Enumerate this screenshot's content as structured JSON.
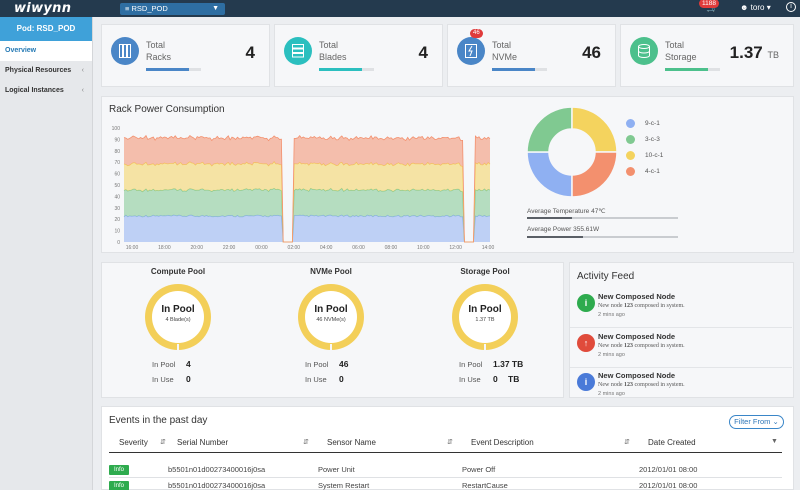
{
  "topbar": {
    "logo": "wiwynn",
    "pod_select": "RSD_POD",
    "cart_count": "1188",
    "user": "toro"
  },
  "sidebar": {
    "header": "Pod: RSD_POD",
    "items": [
      {
        "label": "Overview"
      },
      {
        "label": "Physical Resources"
      },
      {
        "label": "Logical Instances"
      }
    ]
  },
  "stats": [
    {
      "label1": "Total",
      "label2": "Racks",
      "value": "4",
      "unit": "",
      "color": "#4a86c7",
      "bar": 0.78
    },
    {
      "label1": "Total",
      "label2": "Blades",
      "value": "4",
      "unit": "",
      "color": "#2bbfbf",
      "bar": 0.78
    },
    {
      "label1": "Total",
      "label2": "NVMe",
      "value": "46",
      "unit": "",
      "color": "#4a86c7",
      "bar": 0.78,
      "badge": "46"
    },
    {
      "label1": "Total",
      "label2": "Storage",
      "value": "1.37",
      "unit": "TB",
      "color": "#4cc08c",
      "bar": 0.78
    }
  ],
  "rack_power": {
    "title": "Rack Power Consumption",
    "x_ticks": [
      "16:00",
      "18:00",
      "20:00",
      "22:00",
      "00:00",
      "02:00",
      "04:00",
      "06:00",
      "08:00",
      "10:00",
      "12:00",
      "14:00"
    ],
    "y_ticks": [
      "0",
      "10",
      "20",
      "30",
      "40",
      "50",
      "60",
      "70",
      "80",
      "90",
      "100"
    ],
    "legend": [
      {
        "name": "9-c-1",
        "color": "#8fb0f2"
      },
      {
        "name": "3-c-3",
        "color": "#80c991"
      },
      {
        "name": "10-c-1",
        "color": "#f4d35e"
      },
      {
        "name": "4-c-1",
        "color": "#f3906e"
      }
    ],
    "avg_temp_label": "Average Temperature 47℃",
    "avg_temp_fill": 0.3,
    "avg_power_label": "Average Power 355.61W",
    "avg_power_fill": 0.37
  },
  "chart_data": [
    {
      "type": "area",
      "title": "Rack Power Consumption",
      "x": [
        "16:00",
        "18:00",
        "20:00",
        "22:00",
        "00:00",
        "02:00",
        "04:00",
        "06:00",
        "08:00",
        "10:00",
        "12:00",
        "14:00"
      ],
      "ylim": [
        0,
        100
      ],
      "stacked": true,
      "series": [
        {
          "name": "9-c-1",
          "color": "#8fb0f2",
          "values": [
            22,
            22,
            22,
            22,
            22,
            22,
            22,
            22,
            22,
            22,
            22,
            22
          ]
        },
        {
          "name": "3-c-3",
          "color": "#80c991",
          "values": [
            22,
            22,
            22,
            22,
            22,
            22,
            22,
            22,
            22,
            22,
            22,
            22
          ]
        },
        {
          "name": "10-c-1",
          "color": "#f4d35e",
          "values": [
            22,
            22,
            22,
            22,
            22,
            22,
            22,
            22,
            22,
            22,
            22,
            22
          ]
        },
        {
          "name": "4-c-1",
          "color": "#f3906e",
          "values": [
            22,
            22,
            22,
            22,
            22,
            22,
            22,
            22,
            22,
            22,
            22,
            22
          ]
        }
      ],
      "dropouts": [
        "00:00-02:00",
        "14:00-16:00"
      ]
    },
    {
      "type": "pie",
      "donut": true,
      "categories": [
        "9-c-1",
        "3-c-3",
        "10-c-1",
        "4-c-1"
      ],
      "values": [
        25,
        25,
        25,
        25
      ],
      "colors": [
        "#8fb0f2",
        "#80c991",
        "#f4d35e",
        "#f3906e"
      ]
    }
  ],
  "pools": [
    {
      "title": "Compute Pool",
      "center": "In Pool",
      "sub": "4 Blade(s)",
      "in_pool_label": "In Pool",
      "in_pool": "4",
      "in_use_label": "In Use",
      "in_use": "0",
      "in_pool_unit": "",
      "in_use_unit": ""
    },
    {
      "title": "NVMe Pool",
      "center": "In Pool",
      "sub": "46 NVMe(s)",
      "in_pool_label": "In Pool",
      "in_pool": "46",
      "in_use_label": "In Use",
      "in_use": "0",
      "in_pool_unit": "",
      "in_use_unit": ""
    },
    {
      "title": "Storage Pool",
      "center": "In Pool",
      "sub": "1.37 TB",
      "in_pool_label": "In Pool",
      "in_pool": "1.37 TB",
      "in_use_label": "In Use",
      "in_use": "0",
      "in_pool_unit": "",
      "in_use_unit": "TB"
    }
  ],
  "activity": {
    "title": "Activity Feed",
    "items": [
      {
        "icon": "info-icon",
        "color": "#2eab4e",
        "glyph": "i",
        "title": "New Composed Node",
        "desc_pre": "New node ",
        "desc_num": "123",
        "desc_post": " composed in system.",
        "time": "2 mins ago"
      },
      {
        "icon": "upload-icon",
        "color": "#e04b3b",
        "glyph": "↑",
        "title": "New Composed Node",
        "desc_pre": "New node ",
        "desc_num": "123",
        "desc_post": " composed in system.",
        "time": "2 mins ago"
      },
      {
        "icon": "info-icon",
        "color": "#4a7ad8",
        "glyph": "i",
        "title": "New Composed Node",
        "desc_pre": "New node ",
        "desc_num": "123",
        "desc_post": " composed in system.",
        "time": "2 mins ago"
      }
    ]
  },
  "events": {
    "title": "Events in the past day",
    "filter_label": "Filter From",
    "columns": [
      "Severity",
      "Serial Number",
      "Sensor Name",
      "Event Description",
      "Date Created"
    ],
    "rows": [
      {
        "severity": "Info",
        "serial": "b5501n01d00273400016j0sa",
        "sensor": "Power Unit",
        "desc": "Power Off",
        "date": "2012/01/01 08:00"
      },
      {
        "severity": "Info",
        "serial": "b5501n01d00273400016j0sa",
        "sensor": "System Restart",
        "desc": "RestartCause",
        "date": "2012/01/01 08:00"
      }
    ]
  }
}
